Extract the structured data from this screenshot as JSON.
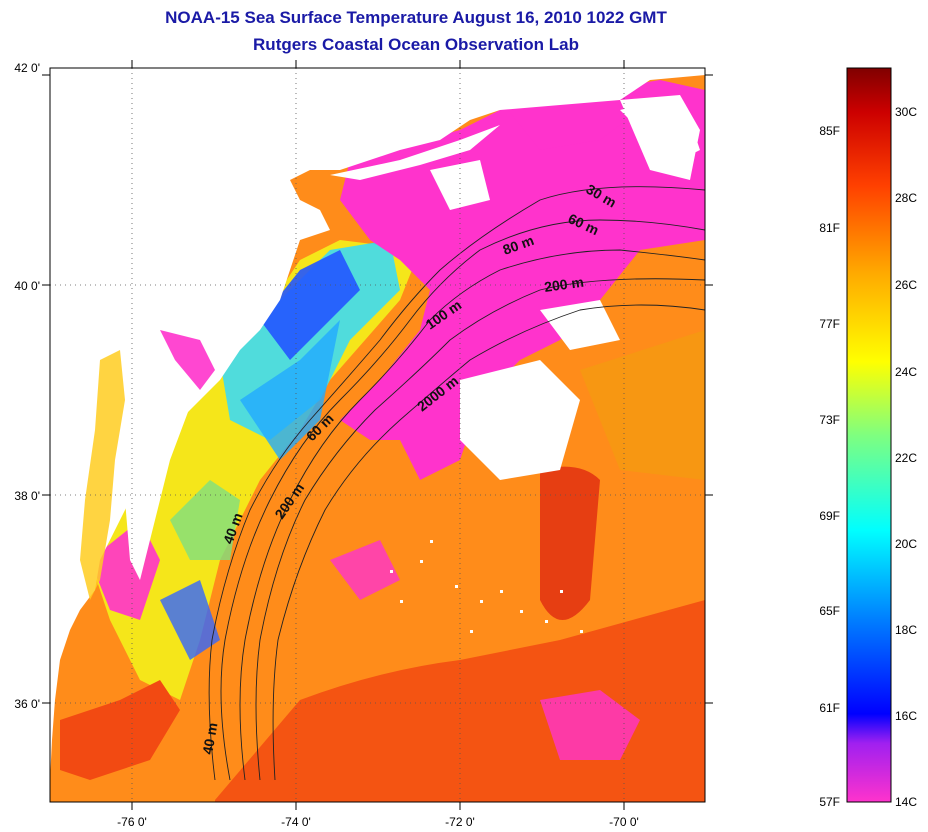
{
  "title": {
    "line1": "NOAA-15 Sea Surface Temperature August 16, 2010 1022 GMT",
    "line2": "Rutgers Coastal Ocean Observation Lab"
  },
  "axes": {
    "lat_labels": [
      "42 0'",
      "40 0'",
      "38 0'",
      "36 0'"
    ],
    "lon_labels": [
      "-76 0'",
      "-74 0'",
      "-72 0'",
      "-70 0'"
    ]
  },
  "depth_contours": {
    "labels": [
      "30 m",
      "60 m",
      "80 m",
      "200 m",
      "100 m",
      "2000 m",
      "60 m",
      "200 m",
      "40 m",
      "40 m"
    ]
  },
  "colorbar": {
    "fahrenheit": [
      "85F",
      "81F",
      "77F",
      "73F",
      "69F",
      "65F",
      "61F",
      "57F"
    ],
    "celsius": [
      "30C",
      "28C",
      "26C",
      "24C",
      "22C",
      "20C",
      "18C",
      "16C",
      "14C"
    ]
  },
  "colors": {
    "title": "#1a1aa6",
    "land": "#ffffff",
    "cold_shelf": "#ff33cc",
    "warm_offshore": "#ff7a1a",
    "gulf_stream": "#e62410"
  }
}
